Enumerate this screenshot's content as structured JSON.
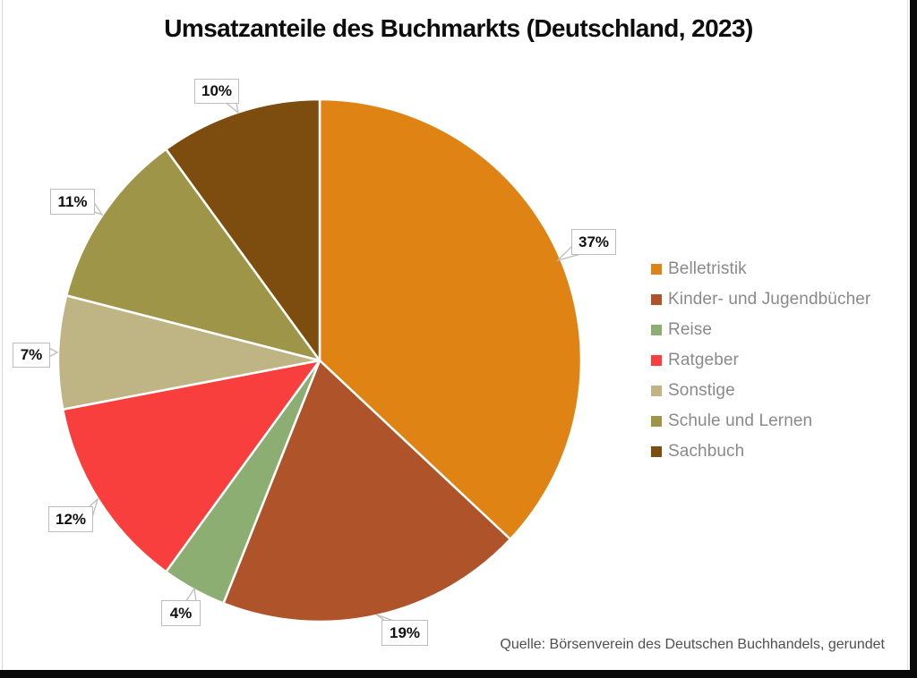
{
  "title": "Umsatzanteile des Buchmarkts (Deutschland, 2023)",
  "source_note": "Quelle: Börsenverein des Deutschen Buchhandels, gerundet",
  "chart_data": {
    "type": "pie",
    "title": "Umsatzanteile des Buchmarkts (Deutschland, 2023)",
    "categories": [
      "Belletristik",
      "Kinder- und Jugendbücher",
      "Reise",
      "Ratgeber",
      "Sonstige",
      "Schule und Lernen",
      "Sachbuch"
    ],
    "values": [
      37,
      19,
      4,
      12,
      7,
      11,
      10
    ],
    "display_labels": [
      "37%",
      "19%",
      "4%",
      "12%",
      "7%",
      "11%",
      "10%"
    ],
    "colors": [
      "#DF8414",
      "#AF532B",
      "#8CAE72",
      "#F93E3E",
      "#BFB584",
      "#9F9548",
      "#7C4D0E"
    ],
    "unit": "%",
    "start_angle_deg": 0,
    "direction": "clockwise",
    "legend_position": "right",
    "slice_border_color": "#ffffff",
    "label_box_border_color": "#bdbdbd",
    "legend_text_color": "#8a8a8a",
    "source": "Quelle: Börsenverein des Deutschen Buchhandels, gerundet"
  }
}
